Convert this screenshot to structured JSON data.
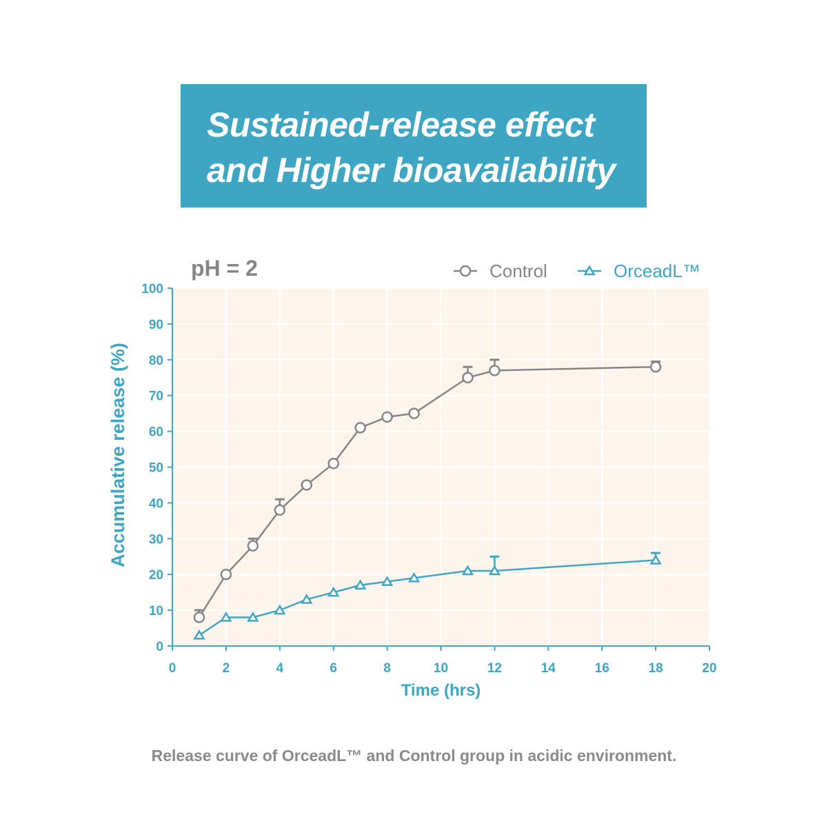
{
  "banner": {
    "line1": "Sustained-release effect",
    "line2": "and Higher bioavailability"
  },
  "caption": "Release curve of OrceadL™ and Control group in acidic environment.",
  "colors": {
    "banner": "#3ea6c2",
    "plot_background": "#fdf5eb",
    "axis": "#3ea6c2",
    "control": "#858585",
    "orceadl": "#3ea6c2"
  },
  "chart_data": {
    "type": "line",
    "annotation": "pH = 2",
    "xlabel": "Time (hrs)",
    "ylabel": "Accumulative release (%)",
    "xlim": [
      0,
      20
    ],
    "ylim": [
      0,
      100
    ],
    "xticks": [
      0,
      2,
      4,
      6,
      8,
      10,
      12,
      14,
      16,
      18,
      20
    ],
    "yticks": [
      0,
      10,
      20,
      30,
      40,
      50,
      60,
      70,
      80,
      90,
      100
    ],
    "grid": true,
    "legend_position": "top-right",
    "series": [
      {
        "name": "Control",
        "marker": "circle",
        "x": [
          1,
          2,
          3,
          4,
          5,
          6,
          7,
          8,
          9,
          11,
          12,
          18
        ],
        "y": [
          8,
          20,
          28,
          38,
          45,
          51,
          61,
          64,
          65,
          75,
          77,
          78
        ],
        "error": [
          2,
          0,
          2,
          3,
          0,
          0,
          0,
          0,
          0,
          3,
          3,
          1.5
        ]
      },
      {
        "name": "OrceadL™",
        "marker": "triangle",
        "x": [
          1,
          2,
          3,
          4,
          5,
          6,
          7,
          8,
          9,
          11,
          12,
          18
        ],
        "y": [
          3,
          8,
          8,
          10,
          13,
          15,
          17,
          18,
          19,
          21,
          21,
          24
        ],
        "error": [
          0,
          0,
          0,
          0,
          0,
          0,
          0,
          0,
          0,
          0,
          4,
          2
        ]
      }
    ]
  }
}
